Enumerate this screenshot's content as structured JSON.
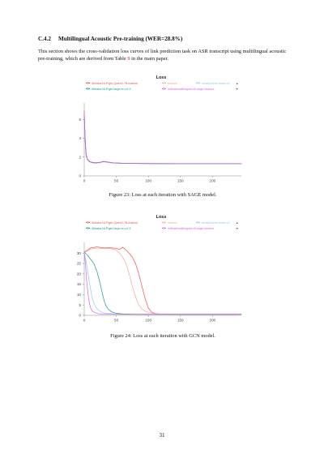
{
  "section": {
    "number": "C.4.2",
    "title": "Multilingual Acoustic Pre-training (WER=28.8%)"
  },
  "intro": {
    "before_ref": "This section shows the cross-validation loss curves of link prediction task on ASR transcript using multilingual acoustic pre-training, which are derived from Table ",
    "ref": "9",
    "after_ref": " in the main paper."
  },
  "figures": [
    {
      "caption": "Figure 23: Loss at each iteration with SAGE model."
    },
    {
      "caption": "Figure 24: Loss at each iteration with GCN model."
    }
  ],
  "page_number": "31",
  "legend_controls": {
    "up": "▲",
    "down": "▼"
  },
  "colors": {
    "qwen": "#e8534a",
    "random": "#f2a79b",
    "phobert": "#8ecae6",
    "gte": "#1a9a8e",
    "e5": "#d85ff0"
  },
  "chart_data": [
    {
      "type": "line",
      "title": "Loss",
      "xlabel": "",
      "ylabel": "",
      "xlim": [
        0,
        245
      ],
      "ylim": [
        0,
        7.5
      ],
      "x_ticks": [
        0,
        50,
        100,
        150,
        200
      ],
      "y_ticks": [
        0,
        2,
        4,
        6
      ],
      "grid": false,
      "legend_position": "top",
      "series": [
        {
          "name": "Alibaba-NLP/gte-Qwen2-7B-instruct",
          "color_key": "qwen",
          "points": [
            [
              0,
              6.9
            ],
            [
              1,
              4.8
            ],
            [
              2,
              3.2
            ],
            [
              3,
              2.3
            ],
            [
              5,
              1.8
            ],
            [
              8,
              1.55
            ],
            [
              12,
              1.45
            ],
            [
              18,
              1.4
            ],
            [
              25,
              1.45
            ],
            [
              30,
              1.55
            ],
            [
              35,
              1.5
            ],
            [
              45,
              1.4
            ],
            [
              60,
              1.35
            ],
            [
              100,
              1.32
            ],
            [
              150,
              1.3
            ],
            [
              200,
              1.3
            ],
            [
              245,
              1.3
            ]
          ]
        },
        {
          "name": "random",
          "color_key": "random",
          "points": [
            [
              0,
              6.6
            ],
            [
              1,
              4.5
            ],
            [
              2,
              3.0
            ],
            [
              3,
              2.2
            ],
            [
              5,
              1.75
            ],
            [
              8,
              1.52
            ],
            [
              12,
              1.42
            ],
            [
              18,
              1.38
            ],
            [
              25,
              1.43
            ],
            [
              30,
              1.52
            ],
            [
              35,
              1.48
            ],
            [
              45,
              1.38
            ],
            [
              60,
              1.34
            ],
            [
              100,
              1.31
            ],
            [
              150,
              1.3
            ],
            [
              200,
              1.29
            ],
            [
              245,
              1.29
            ]
          ]
        },
        {
          "name": "sinai/phobert-base-v2",
          "color_key": "phobert",
          "points": [
            [
              0,
              6.3
            ],
            [
              1,
              4.3
            ],
            [
              2,
              2.9
            ],
            [
              3,
              2.1
            ],
            [
              5,
              1.72
            ],
            [
              8,
              1.5
            ],
            [
              12,
              1.4
            ],
            [
              18,
              1.36
            ],
            [
              25,
              1.42
            ],
            [
              30,
              1.5
            ],
            [
              35,
              1.46
            ],
            [
              45,
              1.37
            ],
            [
              60,
              1.33
            ],
            [
              100,
              1.3
            ],
            [
              150,
              1.29
            ],
            [
              200,
              1.29
            ],
            [
              245,
              1.29
            ]
          ]
        },
        {
          "name": "Alibaba-NLP/gte-large-en-v1.5",
          "color_key": "gte",
          "points": [
            [
              0,
              6.5
            ],
            [
              1,
              4.6
            ],
            [
              2,
              3.1
            ],
            [
              3,
              2.2
            ],
            [
              5,
              1.76
            ],
            [
              8,
              1.52
            ],
            [
              12,
              1.42
            ],
            [
              18,
              1.38
            ],
            [
              25,
              1.44
            ],
            [
              30,
              1.52
            ],
            [
              35,
              1.48
            ],
            [
              45,
              1.38
            ],
            [
              60,
              1.34
            ],
            [
              100,
              1.31
            ],
            [
              150,
              1.3
            ],
            [
              200,
              1.3
            ],
            [
              245,
              1.3
            ]
          ]
        },
        {
          "name": "intfloat/multilingual-e5-large-instruct",
          "color_key": "e5",
          "points": [
            [
              0,
              6.7
            ],
            [
              1,
              4.7
            ],
            [
              2,
              3.1
            ],
            [
              3,
              2.25
            ],
            [
              5,
              1.78
            ],
            [
              8,
              1.53
            ],
            [
              12,
              1.43
            ],
            [
              18,
              1.4
            ],
            [
              25,
              1.46
            ],
            [
              30,
              1.54
            ],
            [
              35,
              1.49
            ],
            [
              45,
              1.39
            ],
            [
              60,
              1.35
            ],
            [
              100,
              1.32
            ],
            [
              150,
              1.31
            ],
            [
              200,
              1.31
            ],
            [
              245,
              1.31
            ]
          ]
        }
      ]
    },
    {
      "type": "line",
      "title": "Loss",
      "xlabel": "",
      "ylabel": "",
      "xlim": [
        0,
        245
      ],
      "ylim": [
        0,
        34
      ],
      "x_ticks": [
        0,
        50,
        100,
        150,
        200
      ],
      "y_ticks": [
        0,
        5,
        10,
        15,
        20,
        25,
        30
      ],
      "grid": false,
      "legend_position": "top",
      "series": [
        {
          "name": "Alibaba-NLP/gte-Qwen2-7B-instruct",
          "color_key": "qwen",
          "points": [
            [
              0,
              30.5
            ],
            [
              5,
              31.5
            ],
            [
              10,
              32.5
            ],
            [
              20,
              33
            ],
            [
              30,
              32.5
            ],
            [
              40,
              32.6
            ],
            [
              50,
              32.3
            ],
            [
              55,
              31.8
            ],
            [
              60,
              32.8
            ],
            [
              65,
              31.5
            ],
            [
              70,
              30
            ],
            [
              75,
              28
            ],
            [
              80,
              25
            ],
            [
              85,
              20
            ],
            [
              90,
              14
            ],
            [
              95,
              8
            ],
            [
              100,
              3.5
            ],
            [
              105,
              1.6
            ],
            [
              110,
              0.9
            ],
            [
              120,
              0.6
            ],
            [
              150,
              0.5
            ],
            [
              200,
              0.5
            ],
            [
              245,
              0.5
            ]
          ]
        },
        {
          "name": "random",
          "color_key": "random",
          "points": [
            [
              0,
              30.5
            ],
            [
              5,
              31
            ],
            [
              10,
              32
            ],
            [
              20,
              32.5
            ],
            [
              30,
              32.2
            ],
            [
              40,
              32.2
            ],
            [
              50,
              31.5
            ],
            [
              55,
              30
            ],
            [
              60,
              28
            ],
            [
              65,
              25
            ],
            [
              70,
              20
            ],
            [
              75,
              14
            ],
            [
              80,
              9
            ],
            [
              85,
              5
            ],
            [
              90,
              3
            ],
            [
              95,
              2
            ],
            [
              100,
              1.4
            ],
            [
              110,
              0.9
            ],
            [
              120,
              0.6
            ],
            [
              150,
              0.5
            ],
            [
              200,
              0.5
            ],
            [
              245,
              0.5
            ]
          ]
        },
        {
          "name": "sinai/phobert-base-v2",
          "color_key": "phobert",
          "points": [
            [
              0,
              30
            ],
            [
              3,
              26
            ],
            [
              6,
              20
            ],
            [
              9,
              14
            ],
            [
              12,
              9
            ],
            [
              15,
              6
            ],
            [
              18,
              4
            ],
            [
              22,
              2.5
            ],
            [
              27,
              1.5
            ],
            [
              35,
              0.9
            ],
            [
              50,
              0.6
            ],
            [
              100,
              0.5
            ],
            [
              150,
              0.5
            ],
            [
              200,
              0.5
            ],
            [
              245,
              0.5
            ]
          ]
        },
        {
          "name": "Alibaba-NLP/gte-large-en-v1.5",
          "color_key": "gte",
          "points": [
            [
              0,
              30.5
            ],
            [
              5,
              29
            ],
            [
              10,
              27
            ],
            [
              15,
              25
            ],
            [
              20,
              21
            ],
            [
              25,
              15
            ],
            [
              28,
              11
            ],
            [
              31,
              7
            ],
            [
              34,
              4.5
            ],
            [
              38,
              2.8
            ],
            [
              43,
              1.6
            ],
            [
              50,
              1.0
            ],
            [
              60,
              0.7
            ],
            [
              80,
              0.55
            ],
            [
              100,
              0.5
            ],
            [
              150,
              0.5
            ],
            [
              200,
              0.5
            ],
            [
              245,
              0.5
            ]
          ]
        },
        {
          "name": "intfloat/multilingual-e5-large-instruct",
          "color_key": "e5",
          "points": [
            [
              0,
              30.5
            ],
            [
              2,
              24
            ],
            [
              4,
              16
            ],
            [
              6,
              10
            ],
            [
              8,
              6
            ],
            [
              10,
              3.5
            ],
            [
              13,
              2.0
            ],
            [
              17,
              1.2
            ],
            [
              22,
              0.8
            ],
            [
              30,
              0.6
            ],
            [
              50,
              0.5
            ],
            [
              100,
              0.5
            ],
            [
              150,
              0.5
            ],
            [
              200,
              0.5
            ],
            [
              245,
              0.5
            ]
          ]
        }
      ]
    }
  ]
}
